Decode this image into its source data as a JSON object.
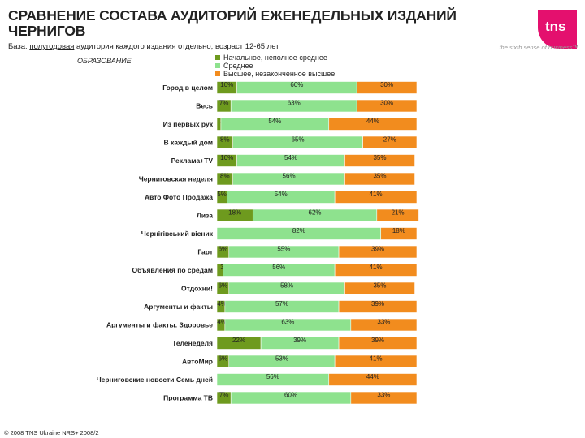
{
  "header": {
    "title": "СРАВНЕНИЕ СОСТАВА АУДИТОРИЙ ЕЖЕНЕДЕЛЬНЫХ ИЗДАНИЙ ЧЕРНИГОВ",
    "subtitle_prefix": "База:",
    "subtitle_underlined": "полугодовая",
    "subtitle_rest": "аудитория каждого издания отдельно, возраст 12-65 лет"
  },
  "brand": {
    "logo_text": "tns",
    "tagline": "the sixth sense of business™",
    "accent": "#e4106e"
  },
  "footer": {
    "copyright": "© 2008 TNS Ukraine NRS+ 2008/2"
  },
  "chart_data": {
    "type": "bar",
    "orientation": "horizontal",
    "stacked": true,
    "percent": true,
    "section_label": "ОБРАЗОВАНИЕ",
    "legend_position": "top",
    "xlim": [
      0,
      100
    ],
    "categories": [
      "Город в целом",
      "Весь",
      "Из первых рук",
      "В каждый дом",
      "Реклама+ТV",
      "Черниговская неделя",
      "Авто Фото Продажа",
      "Лиза",
      "Чернігівський вісник",
      "Гарт",
      "Объявления по средам",
      "Отдохни!",
      "Аргументы и факты",
      "Аргументы и факты. Здоровье",
      "Теленеделя",
      "АвтоМир",
      "Черниговские новости Семь дней",
      "Программа ТВ"
    ],
    "series": [
      {
        "name": "Начальное, неполное среднее",
        "color": "#6e9a1e",
        "values": [
          10,
          7,
          2,
          8,
          10,
          8,
          5,
          18,
          0,
          6,
          3,
          6,
          4,
          4,
          22,
          6,
          0,
          7
        ],
        "labels": [
          "10%",
          "7%",
          "2%",
          "8%",
          "10%",
          "8%",
          "5%",
          "18%",
          "",
          "6%",
          "3%",
          "6%",
          "4%",
          "4%",
          "22%",
          "6%",
          "",
          "7%"
        ]
      },
      {
        "name": "Среднее",
        "color": "#8ee28e",
        "values": [
          60,
          63,
          54,
          65,
          54,
          56,
          54,
          62,
          82,
          55,
          56,
          58,
          57,
          63,
          39,
          53,
          56,
          60
        ],
        "labels": [
          "60%",
          "63%",
          "54%",
          "65%",
          "54%",
          "56%",
          "54%",
          "62%",
          "82%",
          "55%",
          "56%",
          "58%",
          "57%",
          "63%",
          "39%",
          "53%",
          "56%",
          "60%"
        ]
      },
      {
        "name": "Высшее, незаконченное высшее",
        "color": "#f28c1e",
        "values": [
          30,
          30,
          44,
          27,
          35,
          35,
          41,
          21,
          18,
          39,
          41,
          35,
          39,
          33,
          39,
          41,
          44,
          33
        ],
        "labels": [
          "30%",
          "30%",
          "44%",
          "27%",
          "35%",
          "35%",
          "41%",
          "21%",
          "18%",
          "39%",
          "41%",
          "35%",
          "39%",
          "33%",
          "39%",
          "41%",
          "44%",
          "33%"
        ]
      }
    ]
  }
}
